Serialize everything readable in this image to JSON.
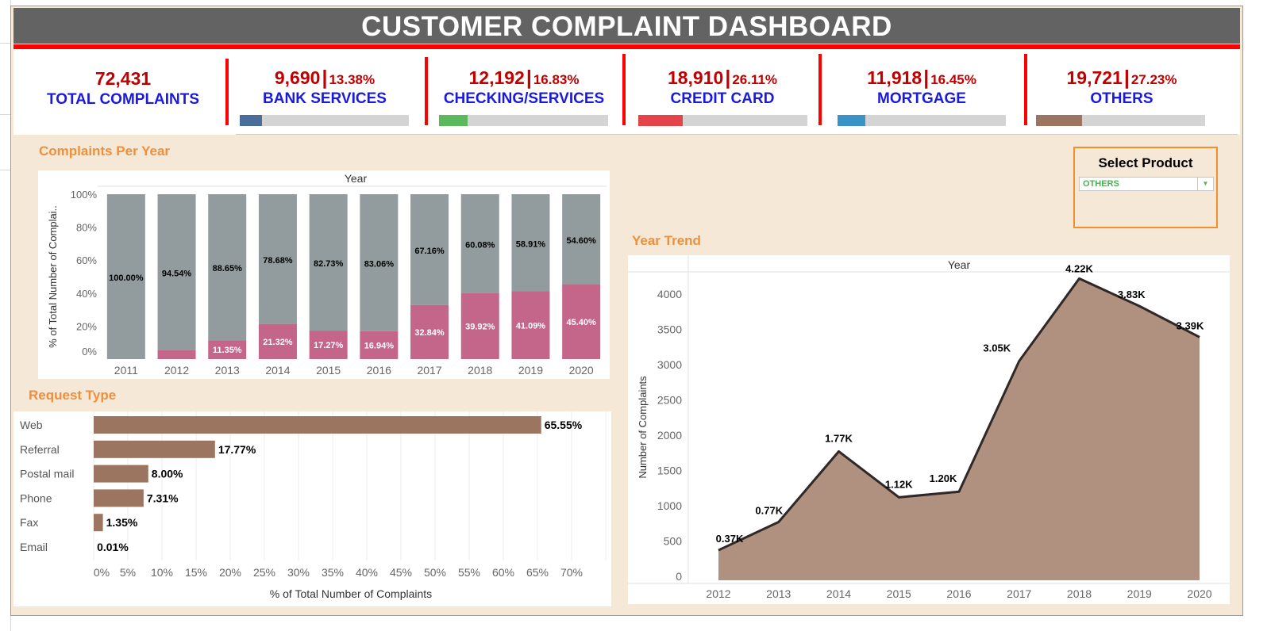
{
  "title": "CUSTOMER COMPLAINT DASHBOARD",
  "colors": {
    "title_bg": "#636363",
    "accent_red": "#ff0000",
    "value_red": "#c00000",
    "label_blue": "#1a1adc",
    "section_orange": "#ee8f3c",
    "background": "#f5e8d7"
  },
  "kpis": [
    {
      "value": "72,431",
      "label": "TOTAL COMPLAINTS"
    },
    {
      "value": "9,690",
      "pct": "13.38%",
      "label": "BANK SERVICES",
      "share": 0.1338,
      "color": "#4a6d99"
    },
    {
      "value": "12,192",
      "pct": "16.83%",
      "label": "CHECKING/SERVICES",
      "share": 0.1683,
      "color": "#5cb85c"
    },
    {
      "value": "18,910",
      "pct": "26.11%",
      "label": "CREDIT CARD",
      "share": 0.2611,
      "color": "#e5434a"
    },
    {
      "value": "11,918",
      "pct": "16.45%",
      "label": "MORTGAGE",
      "share": 0.1645,
      "color": "#3a93c7"
    },
    {
      "value": "19,721",
      "pct": "27.23%",
      "label": "OTHERS",
      "share": 0.2723,
      "color": "#9c7561"
    }
  ],
  "sections": {
    "per_year_title": "Complaints Per Year",
    "request_type_title": "Request Type",
    "year_trend_title": "Year Trend"
  },
  "filter": {
    "title": "Select Product",
    "selected": "OTHERS",
    "arrow_icon": "dropdown-arrow-icon"
  },
  "chart_data": [
    {
      "type": "bar",
      "stacked": true,
      "title": "Complaints Per Year",
      "column_header": "Year",
      "ylabel": "% of Total Number of Complai..",
      "ylim": [
        0,
        100
      ],
      "yticks": [
        "0%",
        "20%",
        "40%",
        "60%",
        "80%",
        "100%"
      ],
      "categories": [
        "2011",
        "2012",
        "2013",
        "2014",
        "2015",
        "2016",
        "2017",
        "2018",
        "2019",
        "2020"
      ],
      "series": [
        {
          "color": "#c4658a",
          "values": [
            0,
            5.46,
            11.35,
            21.32,
            17.27,
            16.94,
            32.84,
            39.92,
            41.09,
            45.4
          ],
          "labels": [
            "",
            "",
            "11.35%",
            "21.32%",
            "17.27%",
            "16.94%",
            "32.84%",
            "39.92%",
            "41.09%",
            "45.40%"
          ]
        },
        {
          "color": "#929b9d",
          "values": [
            100.0,
            94.54,
            88.65,
            78.68,
            82.73,
            83.06,
            67.16,
            60.08,
            58.91,
            54.6
          ],
          "labels": [
            "100.00%",
            "94.54%",
            "88.65%",
            "78.68%",
            "82.73%",
            "83.06%",
            "67.16%",
            "60.08%",
            "58.91%",
            "54.60%"
          ]
        }
      ]
    },
    {
      "type": "bar",
      "orientation": "horizontal",
      "title": "Request Type",
      "xlabel": "% of Total Number of Complaints",
      "xlim": [
        0,
        75
      ],
      "xticks": [
        "0%",
        "5%",
        "10%",
        "15%",
        "20%",
        "25%",
        "30%",
        "35%",
        "40%",
        "45%",
        "50%",
        "55%",
        "60%",
        "65%",
        "70%"
      ],
      "categories": [
        "Web",
        "Referral",
        "Postal mail",
        "Phone",
        "Fax",
        "Email"
      ],
      "values": [
        65.55,
        17.77,
        8.0,
        7.31,
        1.35,
        0.01
      ],
      "labels": [
        "65.55%",
        "17.77%",
        "8.00%",
        "7.31%",
        "1.35%",
        "0.01%"
      ],
      "color": "#9c7561"
    },
    {
      "type": "area",
      "title": "Year Trend",
      "column_header": "Year",
      "ylabel": "Number of Complaints",
      "ylim": [
        0,
        4350
      ],
      "yticks": [
        0,
        500,
        1000,
        1500,
        2000,
        2500,
        3000,
        3500,
        4000
      ],
      "x": [
        "2012",
        "2013",
        "2014",
        "2015",
        "2016",
        "2017",
        "2018",
        "2019",
        "2020"
      ],
      "values": [
        370,
        770,
        1770,
        1120,
        1200,
        3050,
        4220,
        3830,
        3390
      ],
      "labels": [
        "0.37K",
        "0.77K",
        "1.77K",
        "1.12K",
        "1.20K",
        "3.05K",
        "4.22K",
        "3.83K",
        "3.39K"
      ],
      "fill": "#b0907f",
      "line": "#2f2826"
    }
  ]
}
